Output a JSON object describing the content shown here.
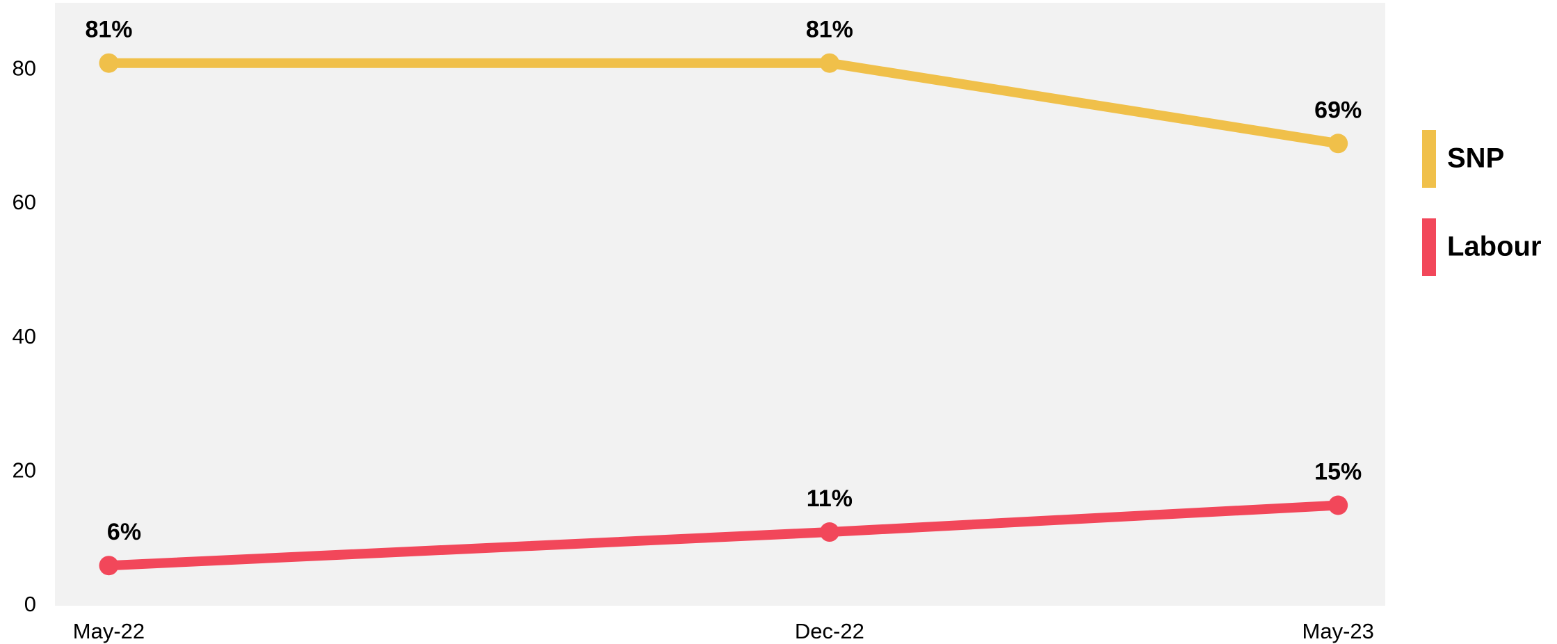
{
  "chart_data": {
    "type": "line",
    "x": [
      "2022-05",
      "2022-12",
      "2023-05"
    ],
    "xlim": [
      "2022-04-15",
      "2023-05-15"
    ],
    "xticks": [
      {
        "value": "2022-05",
        "label": "May-22"
      },
      {
        "value": "2022-12",
        "label": "Dec-22"
      },
      {
        "value": "2023-05",
        "label": "May-23"
      }
    ],
    "ylim": [
      0,
      90
    ],
    "yticks": [
      0,
      20,
      40,
      60,
      80
    ],
    "grid": false,
    "legend": "right",
    "series": [
      {
        "name": "SNP",
        "color": "#f0c04a",
        "label_color": "#dea41e",
        "values": [
          81,
          81,
          69
        ],
        "value_labels": [
          "81%",
          "81%",
          "69%"
        ]
      },
      {
        "name": "Labour",
        "color": "#f2475a",
        "label_color": "#f2475a",
        "values": [
          6,
          11,
          15
        ],
        "value_labels": [
          "6%",
          "11%",
          "15%"
        ]
      }
    ]
  }
}
